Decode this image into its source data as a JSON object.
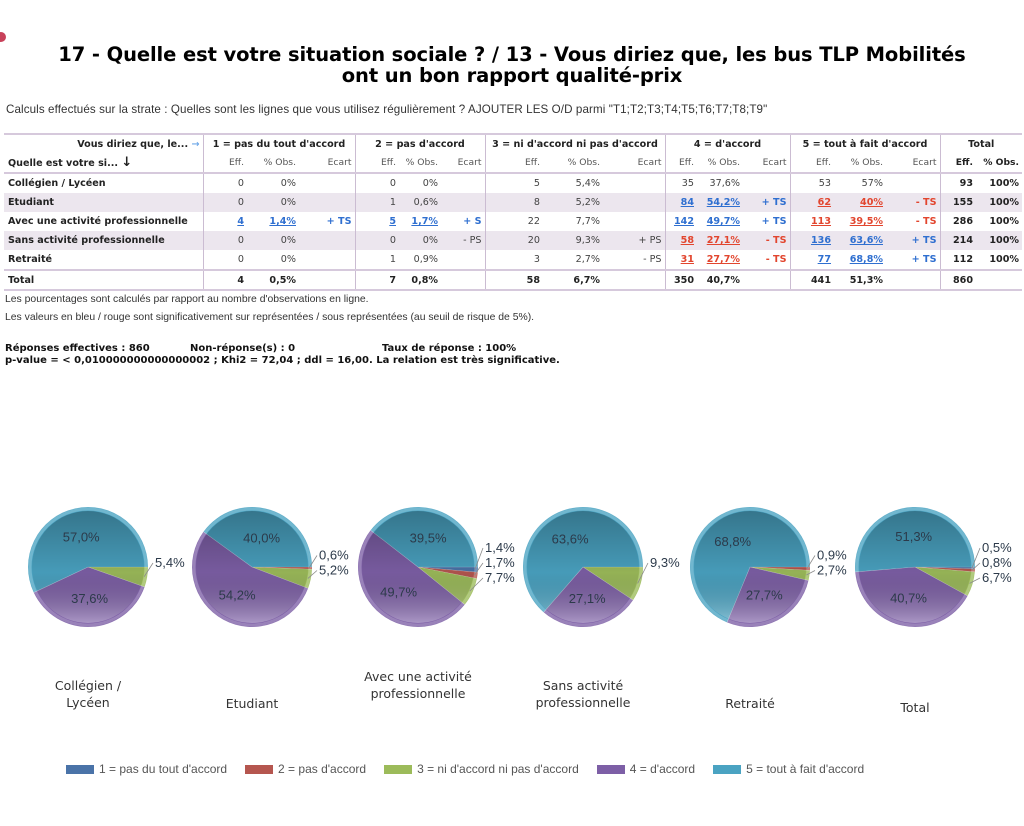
{
  "title": {
    "line1": "17 - Quelle est votre situation sociale ? / 13 - Vous diriez que, les bus TLP Mobilités",
    "line2": "ont un bon rapport qualité-prix"
  },
  "strate_text": "Calculs effectués sur la strate : Quelles sont les lignes que vous utilisez régulièrement ? AJOUTER LES O/D parmi \"T1;T2;T3;T4;T5;T6;T7;T8;T9\"",
  "table": {
    "col_header_label": "Vous diriez que, le...",
    "row_header_label": "Quelle est votre si...",
    "groups": [
      "1 = pas du tout d'accord",
      "2 = pas d'accord",
      "3 = ni d'accord ni pas d'accord",
      "4 = d'accord",
      "5 = tout à fait d'accord",
      "Total"
    ],
    "sub_eff": "Eff.",
    "sub_pct": "% Obs.",
    "sub_ecart": "Ecart",
    "rows": [
      {
        "label": "Collégien / Lycéen",
        "cells": [
          {
            "eff": "0",
            "pct": "0%",
            "ecart": "",
            "sig": ""
          },
          {
            "eff": "0",
            "pct": "0%",
            "ecart": "",
            "sig": ""
          },
          {
            "eff": "5",
            "pct": "5,4%",
            "ecart": "",
            "sig": ""
          },
          {
            "eff": "35",
            "pct": "37,6%",
            "ecart": "",
            "sig": ""
          },
          {
            "eff": "53",
            "pct": "57%",
            "ecart": "",
            "sig": ""
          }
        ],
        "total_eff": "93",
        "total_pct": "100%"
      },
      {
        "label": "Etudiant",
        "cells": [
          {
            "eff": "0",
            "pct": "0%",
            "ecart": "",
            "sig": ""
          },
          {
            "eff": "1",
            "pct": "0,6%",
            "ecart": "",
            "sig": ""
          },
          {
            "eff": "8",
            "pct": "5,2%",
            "ecart": "",
            "sig": ""
          },
          {
            "eff": "84",
            "pct": "54,2%",
            "ecart": "+ TS",
            "sig": "over"
          },
          {
            "eff": "62",
            "pct": "40%",
            "ecart": "- TS",
            "sig": "under"
          }
        ],
        "total_eff": "155",
        "total_pct": "100%"
      },
      {
        "label": "Avec une activité professionnelle",
        "cells": [
          {
            "eff": "4",
            "pct": "1,4%",
            "ecart": "+ TS",
            "sig": "over"
          },
          {
            "eff": "5",
            "pct": "1,7%",
            "ecart": "+ S",
            "sig": "over"
          },
          {
            "eff": "22",
            "pct": "7,7%",
            "ecart": "",
            "sig": ""
          },
          {
            "eff": "142",
            "pct": "49,7%",
            "ecart": "+ TS",
            "sig": "over"
          },
          {
            "eff": "113",
            "pct": "39,5%",
            "ecart": "- TS",
            "sig": "under"
          }
        ],
        "total_eff": "286",
        "total_pct": "100%"
      },
      {
        "label": "Sans activité professionnelle",
        "cells": [
          {
            "eff": "0",
            "pct": "0%",
            "ecart": "",
            "sig": ""
          },
          {
            "eff": "0",
            "pct": "0%",
            "ecart": "- PS",
            "sig": ""
          },
          {
            "eff": "20",
            "pct": "9,3%",
            "ecart": "+ PS",
            "sig": ""
          },
          {
            "eff": "58",
            "pct": "27,1%",
            "ecart": "- TS",
            "sig": "under"
          },
          {
            "eff": "136",
            "pct": "63,6%",
            "ecart": "+ TS",
            "sig": "over"
          }
        ],
        "total_eff": "214",
        "total_pct": "100%"
      },
      {
        "label": "Retraité",
        "cells": [
          {
            "eff": "0",
            "pct": "0%",
            "ecart": "",
            "sig": ""
          },
          {
            "eff": "1",
            "pct": "0,9%",
            "ecart": "",
            "sig": ""
          },
          {
            "eff": "3",
            "pct": "2,7%",
            "ecart": "- PS",
            "sig": ""
          },
          {
            "eff": "31",
            "pct": "27,7%",
            "ecart": "- TS",
            "sig": "under"
          },
          {
            "eff": "77",
            "pct": "68,8%",
            "ecart": "+ TS",
            "sig": "over"
          }
        ],
        "total_eff": "112",
        "total_pct": "100%"
      }
    ],
    "total_row": {
      "label": "Total",
      "cells": [
        {
          "eff": "4",
          "pct": "0,5%"
        },
        {
          "eff": "7",
          "pct": "0,8%"
        },
        {
          "eff": "58",
          "pct": "6,7%"
        },
        {
          "eff": "350",
          "pct": "40,7%"
        },
        {
          "eff": "441",
          "pct": "51,3%"
        }
      ],
      "total_eff": "860",
      "total_pct": ""
    }
  },
  "notes": {
    "line1": "Les pourcentages sont calculés par rapport au nombre d'observations en ligne.",
    "line2": "Les valeurs en bleu / rouge sont significativement sur représentées / sous représentées (au seuil de risque de 5%)."
  },
  "stats": {
    "reponses": "Réponses effectives : 860",
    "non_reponses": "Non-réponse(s) : 0",
    "taux": "Taux de réponse : 100%",
    "pvalue": "p-value = < 0,010000000000000002 ; Khi2 = 72,04 ; ddl = 16,00. La relation est très significative."
  },
  "colors": {
    "cat1": "#4a73a8",
    "cat2": "#b5564f",
    "cat3": "#9cbb5a",
    "cat4": "#7d5fa6",
    "cat5": "#4aa3c2",
    "significant_over": "#2f6fd0",
    "significant_under": "#e2452e"
  },
  "chart_data": {
    "type": "pie",
    "title": "",
    "legend_position": "bottom",
    "categories": [
      "1 = pas du tout d'accord",
      "2 = pas d'accord",
      "3 = ni d'accord ni pas d'accord",
      "4 = d'accord",
      "5 = tout à fait d'accord"
    ],
    "pies": [
      {
        "name": "Collégien / Lycéen",
        "label_lines": [
          "Collégien /",
          "Lycéen"
        ],
        "values": [
          0,
          0,
          5.4,
          37.6,
          57.0
        ],
        "labels": [
          "",
          "",
          "5,4%",
          "37,6%",
          "57,0%"
        ]
      },
      {
        "name": "Etudiant",
        "label_lines": [
          "Etudiant"
        ],
        "values": [
          0,
          0.6,
          5.2,
          54.2,
          40.0
        ],
        "labels": [
          "",
          "0,6%",
          "5,2%",
          "54,2%",
          "40,0%"
        ]
      },
      {
        "name": "Avec une activité professionnelle",
        "label_lines": [
          "Avec une activité",
          "professionnelle"
        ],
        "values": [
          1.4,
          1.7,
          7.7,
          49.7,
          39.5
        ],
        "labels": [
          "1,4%",
          "1,7%",
          "7,7%",
          "49,7%",
          "39,5%"
        ]
      },
      {
        "name": "Sans activité professionnelle",
        "label_lines": [
          "Sans activité",
          "professionnelle"
        ],
        "values": [
          0,
          0,
          9.3,
          27.1,
          63.6
        ],
        "labels": [
          "",
          "",
          "9,3%",
          "27,1%",
          "63,6%"
        ]
      },
      {
        "name": "Retraité",
        "label_lines": [
          "Retraité"
        ],
        "values": [
          0,
          0.9,
          2.7,
          27.7,
          68.8
        ],
        "labels": [
          "",
          "0,9%",
          "2,7%",
          "27,7%",
          "68,8%"
        ]
      },
      {
        "name": "Total",
        "label_lines": [
          "Total"
        ],
        "values": [
          0.5,
          0.8,
          6.7,
          40.7,
          51.3
        ],
        "labels": [
          "0,5%",
          "0,8%",
          "6,7%",
          "40,7%",
          "51,3%"
        ]
      }
    ]
  }
}
